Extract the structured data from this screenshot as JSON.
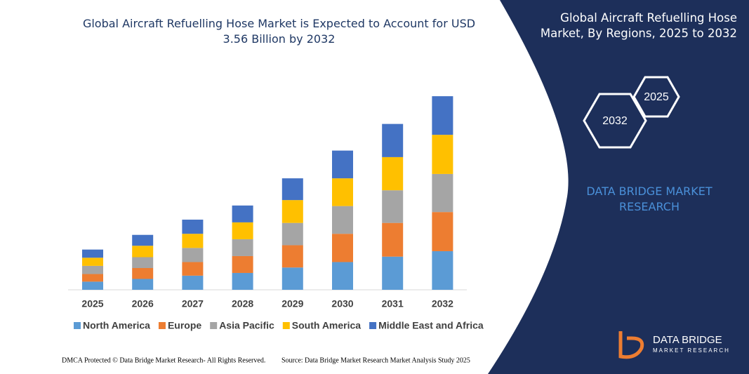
{
  "chart_data": {
    "type": "bar",
    "stacked": true,
    "title": "Global Aircraft Refuelling Hose Market is Expected to Account for USD 3.56 Billion by 2032",
    "categories": [
      "2025",
      "2026",
      "2027",
      "2028",
      "2029",
      "2030",
      "2031",
      "2032"
    ],
    "series": [
      {
        "name": "North America",
        "color": "#5b9bd5",
        "values": [
          0.15,
          0.2,
          0.26,
          0.31,
          0.41,
          0.51,
          0.61,
          0.71
        ]
      },
      {
        "name": "Europe",
        "color": "#ed7d31",
        "values": [
          0.14,
          0.2,
          0.25,
          0.31,
          0.41,
          0.52,
          0.62,
          0.72
        ]
      },
      {
        "name": "Asia Pacific",
        "color": "#a5a5a5",
        "values": [
          0.15,
          0.2,
          0.26,
          0.31,
          0.41,
          0.51,
          0.6,
          0.7
        ]
      },
      {
        "name": "South America",
        "color": "#ffc000",
        "values": [
          0.15,
          0.21,
          0.26,
          0.31,
          0.42,
          0.51,
          0.61,
          0.72
        ]
      },
      {
        "name": "Middle East and Africa",
        "color": "#4472c4",
        "values": [
          0.15,
          0.2,
          0.26,
          0.31,
          0.4,
          0.51,
          0.61,
          0.71
        ]
      }
    ],
    "ylim": [
      0,
      3.6
    ]
  },
  "sidebar": {
    "title": "Global Aircraft Refuelling Hose Market, By Regions, 2025 to 2032",
    "hexagons": [
      "2032",
      "2025"
    ],
    "brand": "DATA BRIDGE MARKET RESEARCH"
  },
  "logo": {
    "name": "DATA BRIDGE",
    "tagline": "MARKET RESEARCH"
  },
  "footer": {
    "copyright": "DMCA Protected © Data Bridge Market Research-  All Rights Reserved.",
    "source": "Source: Data Bridge Market Research  Market Analysis Study 2025"
  }
}
